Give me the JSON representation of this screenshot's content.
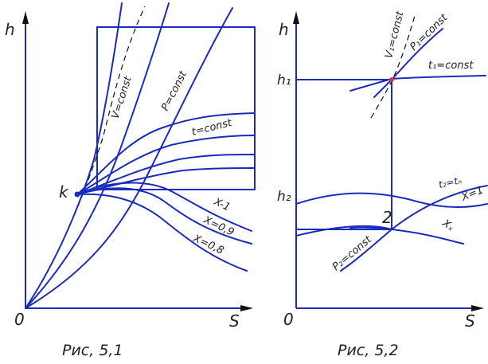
{
  "fig1": {
    "axis_y": "h",
    "axis_x": "S",
    "origin": "0",
    "point_k": "k",
    "v_const": "V=const",
    "p_const": "P=const",
    "t_const": "t=const",
    "x1": "X-1",
    "x09": "X=0,9",
    "x08": "X=0,8",
    "caption": "Рис, 5,1"
  },
  "fig2": {
    "axis_y": "h",
    "axis_x": "S",
    "origin": "0",
    "h1": "h₁",
    "h2": "h₂",
    "v1_const": "V₁=const",
    "p1_const": "P₁=const",
    "t1_const": "t₁=const",
    "p2_const": "P₂=const",
    "t2_eq": "t₂=tₙ",
    "x1": "X=1",
    "x2": "Xₓ",
    "point_2": "2",
    "caption": "Рис, 5,2"
  },
  "colors": {
    "line": "#1a2bbd",
    "dashed": "#111111",
    "text": "#222222"
  }
}
